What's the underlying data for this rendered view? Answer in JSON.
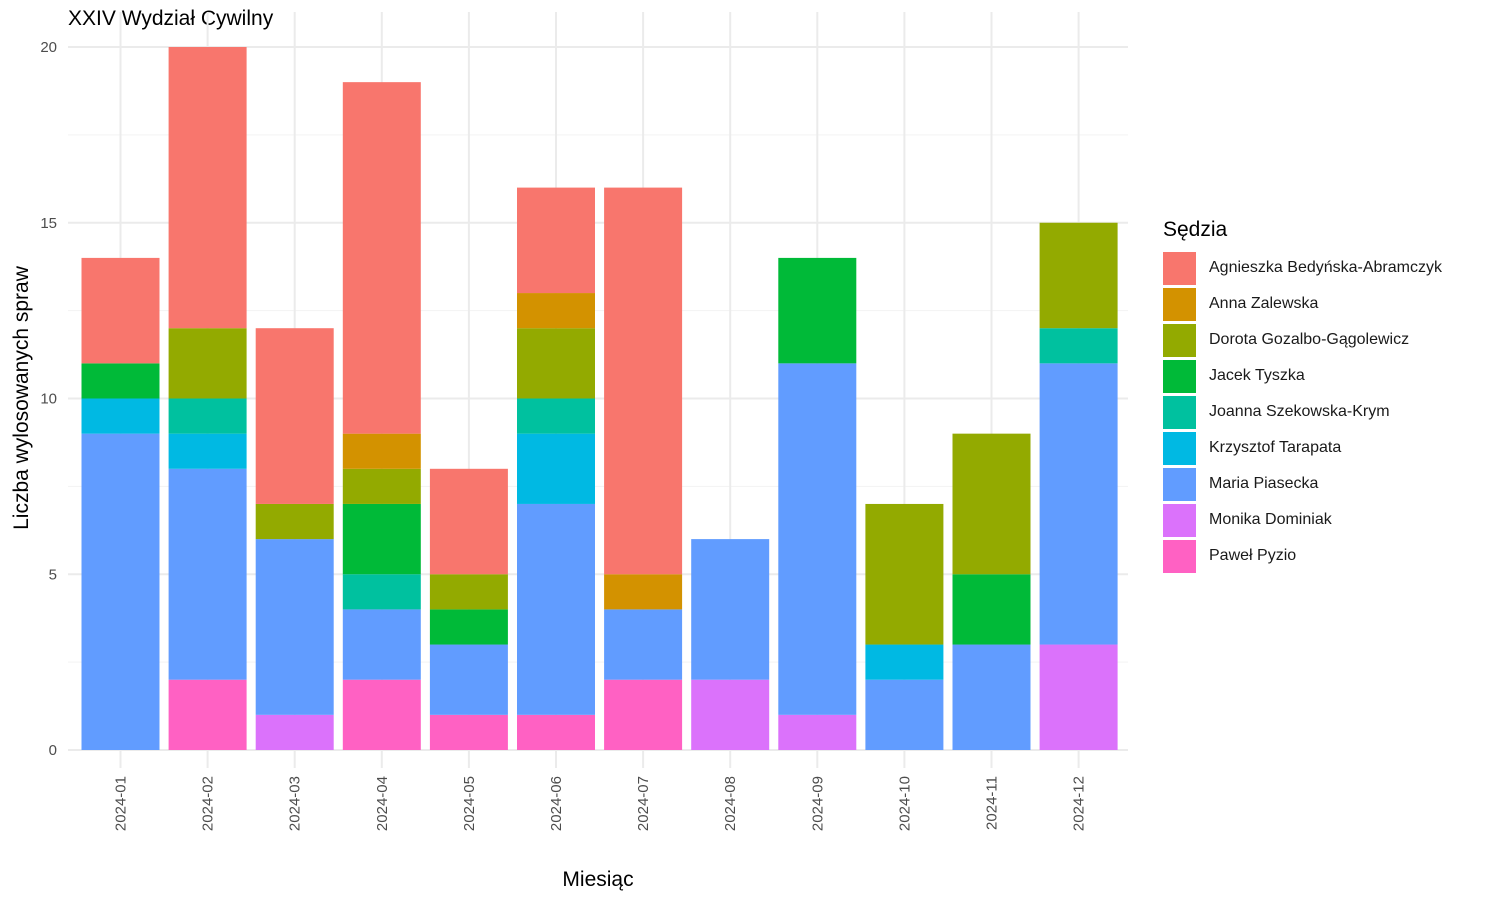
{
  "chart_data": {
    "type": "bar",
    "stacked": true,
    "title": "XXIV Wydział Cywilny",
    "xlabel": "Miesiąc",
    "ylabel": "Liczba wylosowanych spraw",
    "ylim": [
      0,
      20
    ],
    "y_ticks": [
      0,
      5,
      10,
      15,
      20
    ],
    "grid": true,
    "legend_title": "Sędzia",
    "legend_position": "right",
    "categories": [
      "2024-01",
      "2024-02",
      "2024-03",
      "2024-04",
      "2024-05",
      "2024-06",
      "2024-07",
      "2024-08",
      "2024-09",
      "2024-10",
      "2024-11",
      "2024-12"
    ],
    "series": [
      {
        "name": "Paweł Pyzio",
        "color": "#FF61C3",
        "values": [
          0,
          2,
          0,
          2,
          1,
          1,
          2,
          0,
          0,
          0,
          0,
          0
        ]
      },
      {
        "name": "Monika Dominiak",
        "color": "#DB72FB",
        "values": [
          0,
          0,
          1,
          0,
          0,
          0,
          0,
          2,
          1,
          0,
          0,
          3
        ]
      },
      {
        "name": "Maria Piasecka",
        "color": "#619CFF",
        "values": [
          9,
          6,
          5,
          2,
          2,
          6,
          2,
          4,
          10,
          2,
          3,
          8
        ]
      },
      {
        "name": "Krzysztof Tarapata",
        "color": "#00B9E3",
        "values": [
          1,
          1,
          0,
          0,
          0,
          2,
          0,
          0,
          0,
          1,
          0,
          0
        ]
      },
      {
        "name": "Joanna Szekowska-Krym",
        "color": "#00C19F",
        "values": [
          0,
          1,
          0,
          1,
          0,
          1,
          0,
          0,
          0,
          0,
          0,
          1
        ]
      },
      {
        "name": "Jacek Tyszka",
        "color": "#00BA38",
        "values": [
          1,
          0,
          0,
          2,
          1,
          0,
          0,
          0,
          3,
          0,
          2,
          0
        ]
      },
      {
        "name": "Dorota Gozalbo-Gągolewicz",
        "color": "#93AA00",
        "values": [
          0,
          2,
          1,
          1,
          1,
          2,
          0,
          0,
          0,
          4,
          4,
          3
        ]
      },
      {
        "name": "Anna Zalewska",
        "color": "#D39200",
        "values": [
          0,
          0,
          0,
          1,
          0,
          1,
          1,
          0,
          0,
          0,
          0,
          0
        ]
      },
      {
        "name": "Agnieszka Bedyńska-Abramczyk",
        "color": "#F8766D",
        "values": [
          3,
          8,
          5,
          10,
          3,
          3,
          11,
          0,
          0,
          0,
          0,
          0
        ]
      }
    ],
    "legend_order": [
      "Agnieszka Bedyńska-Abramczyk",
      "Anna Zalewska",
      "Dorota Gozalbo-Gągolewicz",
      "Jacek Tyszka",
      "Joanna Szekowska-Krym",
      "Krzysztof Tarapata",
      "Maria Piasecka",
      "Monika Dominiak",
      "Paweł Pyzio"
    ]
  }
}
